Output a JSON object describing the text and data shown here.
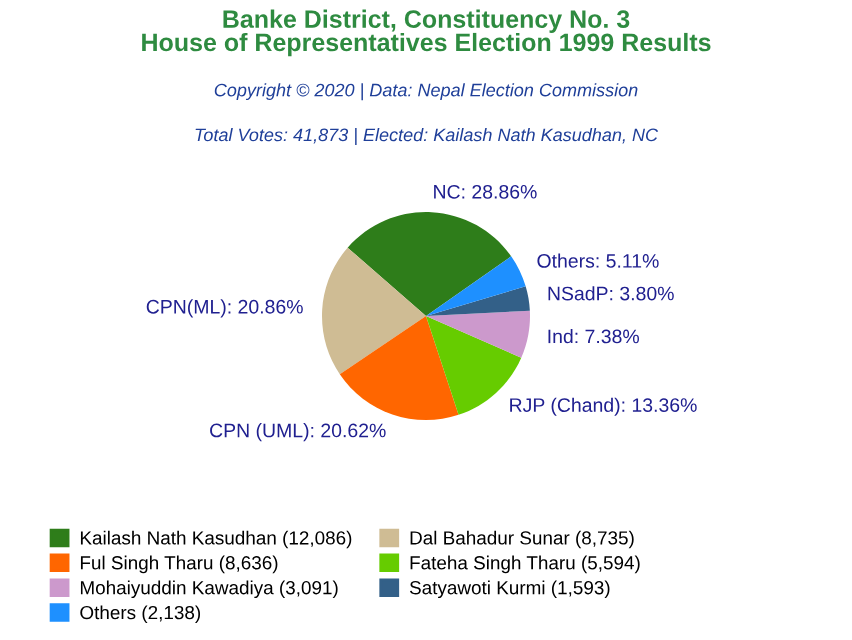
{
  "chart_data": {
    "type": "pie",
    "title": "Banke District, Constituency No. 3\nHouse of Representatives Election 1999 Results",
    "subtitle": "Copyright © 2020 | Data: Nepal Election Commission",
    "annotations": [
      "Total Votes: 41,873 | Elected: Kailash Nath Kasudhan, NC"
    ],
    "categories": [
      "Kailash Nath Kasudhan (12,086)",
      "Dal Bahadur Sunar (8,735)",
      "Ful Singh Tharu (8,636)",
      "Fateha Singh Tharu (5,594)",
      "Mohaiyuddin Kawadiya (3,091)",
      "Satyawoti Kurmi (1,593)",
      "Others (2,138)"
    ],
    "values": [
      28.86,
      20.86,
      20.62,
      13.36,
      7.38,
      3.8,
      5.11
    ],
    "value_labels": [
      "NC: 28.86%",
      "CPN(ML): 20.86%",
      "CPN (UML): 20.62%",
      "RJP (Chand): 13.36%",
      "Ind: 7.38%",
      "NSadP: 3.80%",
      "Others: 5.11%"
    ],
    "colors": [
      "#2e7d1a",
      "#cfbc94",
      "#ff6600",
      "#66cc00",
      "#cc99cc",
      "#336088",
      "#1e90ff"
    ],
    "legend": "bottom"
  }
}
